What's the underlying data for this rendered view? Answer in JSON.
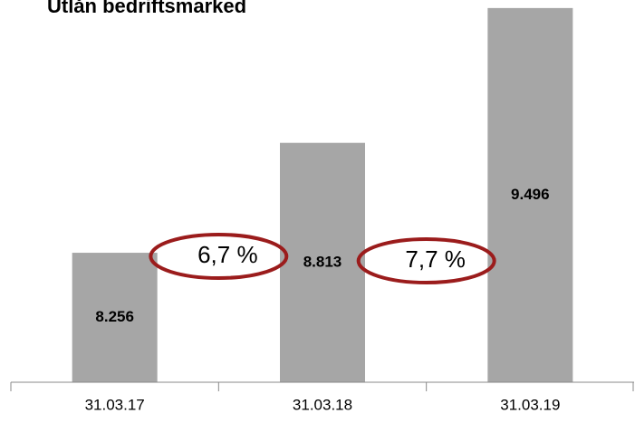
{
  "chart_data": {
    "type": "bar",
    "title": "Utlån bedriftsmarked",
    "categories": [
      "31.03.17",
      "31.03.18",
      "31.03.19"
    ],
    "values": [
      8256,
      8813,
      9496
    ],
    "value_labels": [
      "8.256",
      "8.813",
      "9.496"
    ],
    "color": "#a6a6a6",
    "ylim": [
      7600,
      9500
    ],
    "annotations": [
      "6,7 %",
      "7,7 %"
    ]
  }
}
